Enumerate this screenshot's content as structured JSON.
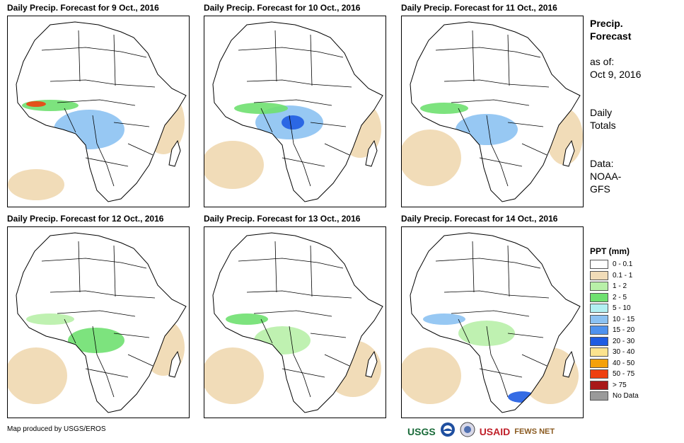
{
  "panels": [
    {
      "title": "Daily Precip. Forecast for 9 Oct., 2016"
    },
    {
      "title": "Daily Precip. Forecast for 10 Oct., 2016"
    },
    {
      "title": "Daily Precip. Forecast for 11 Oct., 2016"
    },
    {
      "title": "Daily Precip. Forecast for 12 Oct., 2016"
    },
    {
      "title": "Daily Precip. Forecast for 13 Oct., 2016"
    },
    {
      "title": "Daily Precip. Forecast for 14 Oct., 2016"
    }
  ],
  "side": {
    "heading_line1": "Precip.",
    "heading_line2": "Forecast",
    "asof_label": "as of:",
    "asof_date": "Oct 9, 2016",
    "daily_line1": "Daily",
    "daily_line2": "Totals",
    "data_line1": "Data:",
    "data_line2": "NOAA-",
    "data_line3": "GFS"
  },
  "legend": {
    "title": "PPT (mm)",
    "items": [
      {
        "label": "0 - 0.1",
        "color": "#ffffff"
      },
      {
        "label": "0.1 - 1",
        "color": "#f1dcb8"
      },
      {
        "label": "1 - 2",
        "color": "#b8f0a8"
      },
      {
        "label": "2 - 5",
        "color": "#6fe070"
      },
      {
        "label": "5 - 10",
        "color": "#b2f0f2"
      },
      {
        "label": "10 - 15",
        "color": "#8cc2f2"
      },
      {
        "label": "15 - 20",
        "color": "#4f92ee"
      },
      {
        "label": "20 - 30",
        "color": "#1f5ce2"
      },
      {
        "label": "30 - 40",
        "color": "#fbe38e"
      },
      {
        "label": "40 - 50",
        "color": "#f4a10a"
      },
      {
        "label": "50 - 75",
        "color": "#ee4010"
      },
      {
        "label": "> 75",
        "color": "#a81818"
      },
      {
        "label": "No Data",
        "color": "#9a9a9a"
      }
    ]
  },
  "credit": "Map produced by USGS/EROS",
  "logos": {
    "usgs": "USGS",
    "usaid": "USAID",
    "fews": "FEWS NET"
  },
  "colors": {
    "land": "#ffffff",
    "dry": "#f1dcb8",
    "light": "#b8f0a8",
    "moderate": "#6fe070",
    "wet": "#8cc2f2",
    "heavy": "#1f5ce2",
    "extreme": "#ee4010"
  }
}
